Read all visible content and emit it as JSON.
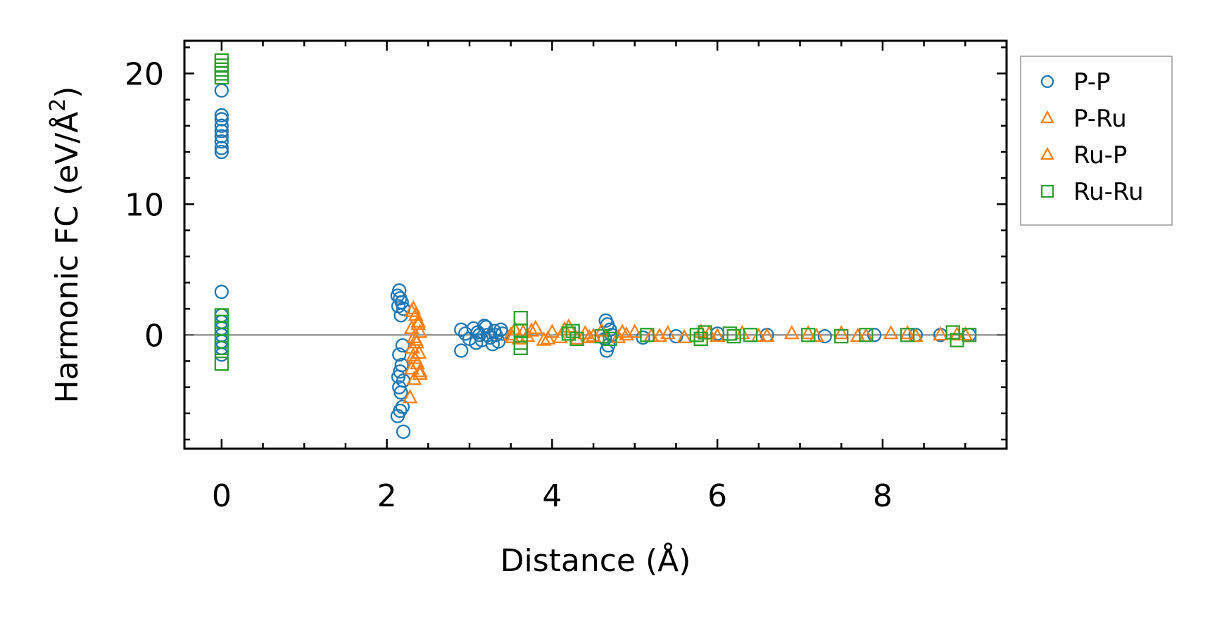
{
  "chart_data": {
    "type": "scatter",
    "xlabel": "Distance (Å)",
    "ylabel_main": "Harmonic FC (eV/Å",
    "ylabel_sup": "2",
    "ylabel_close": ")",
    "xlim": [
      -0.45,
      9.5
    ],
    "ylim": [
      -8.7,
      22.5
    ],
    "x_ticks": [
      0,
      2,
      4,
      6,
      8
    ],
    "y_ticks": [
      0,
      10,
      20
    ],
    "zero_line": true,
    "grid": false,
    "legend_position": "outside-right-top",
    "colors": {
      "P-P": "#1f77b4",
      "P-Ru": "#ff7f0e",
      "Ru-P": "#ff7f0e",
      "Ru-Ru": "#2ca02c"
    },
    "series": [
      {
        "name": "P-P",
        "marker": "circle",
        "points": [
          [
            0,
            18.7
          ],
          [
            0,
            16.8
          ],
          [
            0,
            16.5
          ],
          [
            0,
            16.0
          ],
          [
            0,
            15.6
          ],
          [
            0,
            15.2
          ],
          [
            0,
            14.8
          ],
          [
            0,
            14.3
          ],
          [
            0,
            14.0
          ],
          [
            0,
            3.3
          ],
          [
            0,
            1.5
          ],
          [
            0,
            1.0
          ],
          [
            0,
            0.5
          ],
          [
            0,
            0.0
          ],
          [
            0,
            -0.5
          ],
          [
            0,
            -1.0
          ],
          [
            0,
            -1.5
          ],
          [
            2.15,
            3.4
          ],
          [
            2.13,
            3.0
          ],
          [
            2.16,
            2.8
          ],
          [
            2.18,
            2.5
          ],
          [
            2.14,
            2.2
          ],
          [
            2.2,
            2.0
          ],
          [
            2.17,
            1.5
          ],
          [
            2.19,
            -0.8
          ],
          [
            2.15,
            -1.5
          ],
          [
            2.18,
            -2.3
          ],
          [
            2.16,
            -2.8
          ],
          [
            2.14,
            -3.2
          ],
          [
            2.2,
            -3.5
          ],
          [
            2.15,
            -4.0
          ],
          [
            2.17,
            -4.4
          ],
          [
            2.19,
            -5.5
          ],
          [
            2.16,
            -5.8
          ],
          [
            2.13,
            -6.2
          ],
          [
            2.2,
            -7.4
          ],
          [
            2.9,
            0.4
          ],
          [
            2.9,
            -1.2
          ],
          [
            2.95,
            0.1
          ],
          [
            3.0,
            -0.3
          ],
          [
            3.05,
            0.5
          ],
          [
            3.1,
            0.2
          ],
          [
            3.15,
            -0.4
          ],
          [
            3.2,
            0.6
          ],
          [
            3.25,
            -0.2
          ],
          [
            3.3,
            0.3
          ],
          [
            3.35,
            -0.5
          ],
          [
            3.4,
            0.1
          ],
          [
            3.08,
            -0.6
          ],
          [
            3.18,
            0.7
          ],
          [
            3.28,
            -0.7
          ],
          [
            3.38,
            0.4
          ],
          [
            3.12,
            0.0
          ],
          [
            3.22,
            0.0
          ],
          [
            3.32,
            0.0
          ],
          [
            4.65,
            1.1
          ],
          [
            4.67,
            0.8
          ],
          [
            4.68,
            -0.8
          ],
          [
            4.66,
            -1.2
          ],
          [
            4.7,
            0.4
          ],
          [
            4.64,
            -0.3
          ],
          [
            4.72,
            0.0
          ],
          [
            5.1,
            -0.2
          ],
          [
            5.5,
            -0.1
          ],
          [
            6.0,
            0.1
          ],
          [
            6.6,
            0.0
          ],
          [
            7.3,
            -0.1
          ],
          [
            7.9,
            0.0
          ],
          [
            8.4,
            0.0
          ],
          [
            8.7,
            0.0
          ],
          [
            9.05,
            0.0
          ]
        ]
      },
      {
        "name": "P-Ru",
        "marker": "triangle",
        "points": [
          [
            2.32,
            2.0
          ],
          [
            2.35,
            1.5
          ],
          [
            2.38,
            1.0
          ],
          [
            2.3,
            0.5
          ],
          [
            2.4,
            0.2
          ],
          [
            2.33,
            -0.2
          ],
          [
            2.36,
            -0.6
          ],
          [
            2.31,
            -1.0
          ],
          [
            2.39,
            -1.4
          ],
          [
            2.34,
            -1.8
          ],
          [
            2.37,
            -2.2
          ],
          [
            2.3,
            -2.6
          ],
          [
            2.4,
            -3.0
          ],
          [
            2.33,
            -3.4
          ],
          [
            2.28,
            -4.8
          ],
          [
            3.5,
            0.0
          ],
          [
            3.55,
            0.4
          ],
          [
            3.6,
            -0.3
          ],
          [
            3.65,
            0.2
          ],
          [
            3.7,
            -0.1
          ],
          [
            3.8,
            0.5
          ],
          [
            3.9,
            -0.4
          ],
          [
            4.0,
            0.2
          ],
          [
            4.1,
            -0.2
          ],
          [
            4.2,
            0.6
          ],
          [
            4.3,
            -0.3
          ],
          [
            4.4,
            0.1
          ],
          [
            4.5,
            -0.1
          ],
          [
            4.6,
            0.3
          ],
          [
            4.8,
            -0.2
          ],
          [
            4.9,
            0.0
          ],
          [
            5.0,
            0.2
          ],
          [
            5.2,
            -0.1
          ],
          [
            5.4,
            0.1
          ],
          [
            5.6,
            -0.2
          ],
          [
            5.8,
            0.2
          ],
          [
            6.0,
            -0.1
          ],
          [
            6.3,
            0.1
          ],
          [
            6.6,
            -0.1
          ],
          [
            6.9,
            0.1
          ],
          [
            7.2,
            -0.1
          ],
          [
            7.5,
            0.1
          ],
          [
            7.8,
            -0.1
          ],
          [
            8.1,
            0.1
          ],
          [
            8.4,
            -0.1
          ],
          [
            8.7,
            0.0
          ],
          [
            9.0,
            0.0
          ]
        ]
      },
      {
        "name": "Ru-P",
        "marker": "triangle",
        "points": [
          [
            2.3,
            1.8
          ],
          [
            2.38,
            0.8
          ],
          [
            2.35,
            -0.4
          ],
          [
            2.32,
            -1.6
          ],
          [
            2.4,
            -2.8
          ],
          [
            3.52,
            -0.2
          ],
          [
            3.75,
            0.3
          ],
          [
            3.95,
            -0.3
          ],
          [
            4.15,
            0.4
          ],
          [
            4.45,
            -0.2
          ],
          [
            4.85,
            0.2
          ],
          [
            5.3,
            -0.1
          ],
          [
            5.9,
            0.1
          ],
          [
            6.5,
            -0.1
          ],
          [
            7.1,
            0.1
          ],
          [
            7.7,
            -0.1
          ],
          [
            8.3,
            0.1
          ],
          [
            8.9,
            0.0
          ]
        ]
      },
      {
        "name": "Ru-Ru",
        "marker": "square",
        "points": [
          [
            0,
            21.0
          ],
          [
            0,
            20.6
          ],
          [
            0,
            20.3
          ],
          [
            0,
            20.0
          ],
          [
            0,
            19.7
          ],
          [
            0,
            1.5
          ],
          [
            0,
            1.0
          ],
          [
            0,
            0.5
          ],
          [
            0,
            -0.5
          ],
          [
            0,
            -1.0
          ],
          [
            0,
            -2.2
          ],
          [
            3.62,
            1.3
          ],
          [
            3.62,
            0.3
          ],
          [
            3.62,
            -0.6
          ],
          [
            3.62,
            -1.0
          ],
          [
            4.2,
            0.1
          ],
          [
            4.25,
            0.3
          ],
          [
            4.3,
            -0.3
          ],
          [
            4.6,
            -0.1
          ],
          [
            4.7,
            -0.3
          ],
          [
            5.15,
            0.0
          ],
          [
            5.75,
            0.0
          ],
          [
            5.8,
            -0.3
          ],
          [
            5.85,
            0.2
          ],
          [
            6.15,
            0.1
          ],
          [
            6.2,
            -0.1
          ],
          [
            6.4,
            0.0
          ],
          [
            7.1,
            0.0
          ],
          [
            7.5,
            -0.1
          ],
          [
            7.8,
            0.0
          ],
          [
            8.3,
            0.0
          ],
          [
            8.85,
            0.2
          ],
          [
            8.9,
            -0.4
          ],
          [
            9.05,
            0.0
          ]
        ]
      }
    ]
  }
}
